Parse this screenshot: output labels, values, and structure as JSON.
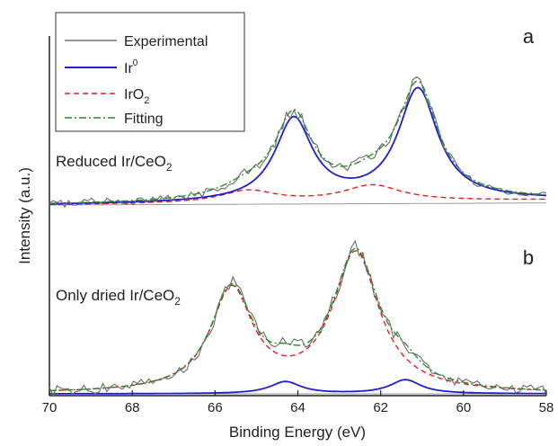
{
  "chart_data": {
    "type": "line",
    "xlabel": "Binding Energy (eV)",
    "ylabel": "Intensity (a.u.)",
    "xlim": [
      70,
      58
    ],
    "x_reversed": true,
    "x_ticks": [
      "70",
      "68",
      "66",
      "64",
      "62",
      "60",
      "58"
    ],
    "x_tick_values": [
      70,
      68,
      66,
      64,
      62,
      60,
      58
    ],
    "legend": {
      "position": "top-left",
      "entries": [
        {
          "label": "Experimental",
          "sub": "",
          "sup": "",
          "color": "#707070",
          "style": "solid"
        },
        {
          "label": "Ir",
          "sub": "",
          "sup": "0",
          "color": "#1f1fd0",
          "style": "solid"
        },
        {
          "label": "IrO",
          "sub": "2",
          "sup": "",
          "color": "#e02020",
          "style": "dashed"
        },
        {
          "label": "Fitting",
          "sub": "",
          "sup": "",
          "color": "#2e8b2e",
          "style": "dashdot"
        }
      ]
    },
    "panels": [
      {
        "panel_label": "a",
        "sample_label": "Reduced Ir/CeO",
        "sample_label_sub": "2",
        "background_start": 0.0,
        "background_end": 0.06,
        "ir0_peaks": [
          {
            "center": 64.1,
            "height": 0.96,
            "width": 0.55
          },
          {
            "center": 61.1,
            "height": 1.3,
            "width": 0.58
          }
        ],
        "iro2_peaks": [
          {
            "center": 65.2,
            "height": 0.14,
            "width": 0.8
          },
          {
            "center": 62.2,
            "height": 0.19,
            "width": 0.85
          }
        ]
      },
      {
        "panel_label": "b",
        "sample_label": "Only dried Ir/CeO",
        "sample_label_sub": "2",
        "background_start": 0.0,
        "background_end": 0.0,
        "ir0_peaks": [
          {
            "center": 64.3,
            "height": 0.13,
            "width": 0.45
          },
          {
            "center": 61.4,
            "height": 0.15,
            "width": 0.45
          }
        ],
        "iro2_peaks": [
          {
            "center": 65.6,
            "height": 1.1,
            "width": 0.62
          },
          {
            "center": 62.6,
            "height": 1.5,
            "width": 0.68
          }
        ]
      }
    ]
  }
}
